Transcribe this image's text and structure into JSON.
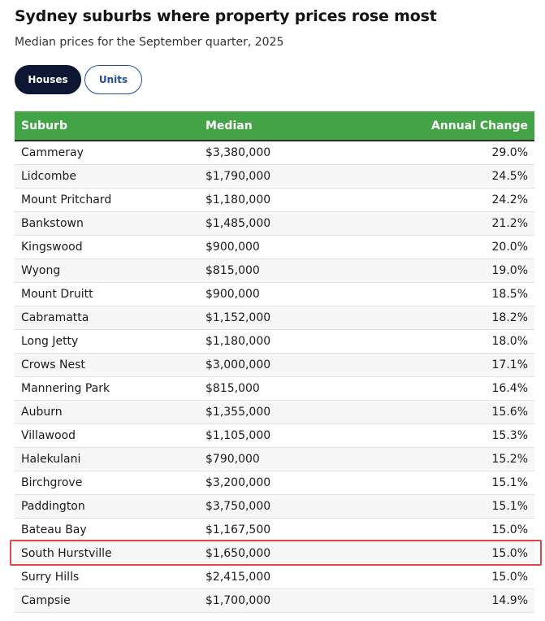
{
  "title": "Sydney suburbs where property prices rose most",
  "subtitle": "Median prices for the September quarter, 2025",
  "tabs": [
    {
      "label": "Houses",
      "active": true
    },
    {
      "label": "Units",
      "active": false
    }
  ],
  "table": {
    "headers": [
      "Suburb",
      "Median",
      "Annual Change"
    ],
    "rows": [
      [
        "Cammeray",
        "$3,380,000",
        "29.0%"
      ],
      [
        "Lidcombe",
        "$1,790,000",
        "24.5%"
      ],
      [
        "Mount Pritchard",
        "$1,180,000",
        "24.2%"
      ],
      [
        "Bankstown",
        "$1,485,000",
        "21.2%"
      ],
      [
        "Kingswood",
        "$900,000",
        "20.0%"
      ],
      [
        "Wyong",
        "$815,000",
        "19.0%"
      ],
      [
        "Mount Druitt",
        "$900,000",
        "18.5%"
      ],
      [
        "Cabramatta",
        "$1,152,000",
        "18.2%"
      ],
      [
        "Long Jetty",
        "$1,180,000",
        "18.0%"
      ],
      [
        "Crows Nest",
        "$3,000,000",
        "17.1%"
      ],
      [
        "Mannering Park",
        "$815,000",
        "16.4%"
      ],
      [
        "Auburn",
        "$1,355,000",
        "15.6%"
      ],
      [
        "Villawood",
        "$1,105,000",
        "15.3%"
      ],
      [
        "Halekulani",
        "$790,000",
        "15.2%"
      ],
      [
        "Birchgrove",
        "$3,200,000",
        "15.1%"
      ],
      [
        "Paddington",
        "$3,750,000",
        "15.1%"
      ],
      [
        "Bateau Bay",
        "$1,167,500",
        "15.0%"
      ],
      [
        "South Hurstville",
        "$1,650,000",
        "15.0%"
      ],
      [
        "Surry Hills",
        "$2,415,000",
        "15.0%"
      ],
      [
        "Campsie",
        "$1,700,000",
        "14.9%"
      ]
    ]
  },
  "colors": {
    "header_green": "#43a347",
    "active_tab": "#0d1733",
    "inactive_tab_text": "#1f4ea3",
    "highlight_border": "#e0474c"
  }
}
